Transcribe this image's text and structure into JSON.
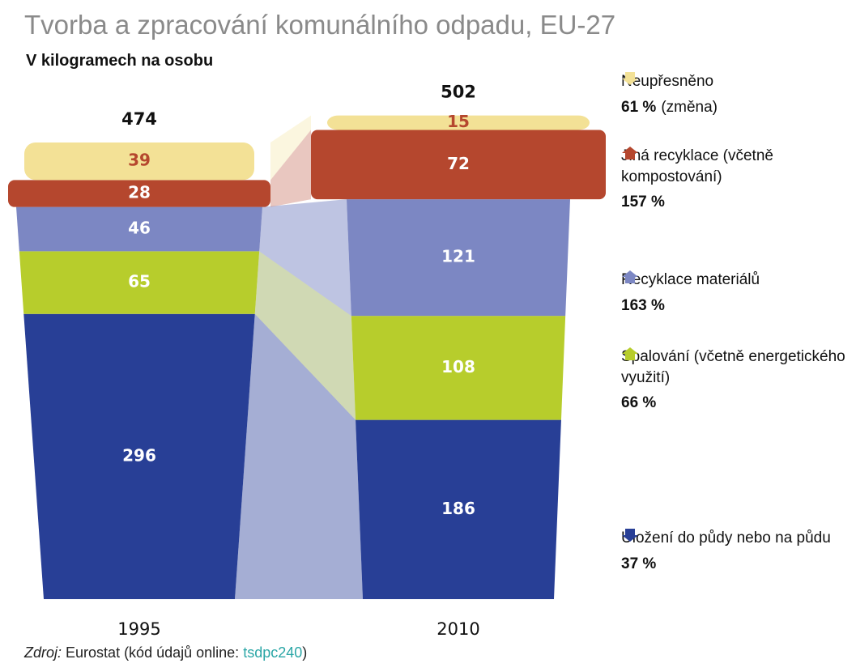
{
  "chart_data": {
    "type": "stacked-bins",
    "title": "Tvorba a zpracování komunálního odpadu, EU-27",
    "subtitle": "V kilogramech na osobu",
    "categories": [
      "1995",
      "2010"
    ],
    "totals": [
      474,
      502
    ],
    "series": [
      {
        "name": "Uložení do půdy nebo na půdu",
        "color": "#283f96",
        "values": [
          296,
          186
        ],
        "change": {
          "value": 37,
          "label": "37 %"
        },
        "direction": "down"
      },
      {
        "name": "Spalování (včetně energetického využití)",
        "color": "#b7cd2c",
        "values": [
          65,
          108
        ],
        "change": {
          "value": 66,
          "label": "66 %"
        },
        "direction": "up"
      },
      {
        "name": "Recyklace materiálů",
        "color": "#7c87c3",
        "values": [
          46,
          121
        ],
        "change": {
          "value": 163,
          "label": "163 %"
        },
        "direction": "up"
      },
      {
        "name": "Jiná recyklace (včetně kompostování)",
        "color": "#b5472e",
        "values": [
          28,
          72
        ],
        "change": {
          "value": 157,
          "label": "157 %"
        },
        "direction": "up"
      },
      {
        "name": "Neupřesněno",
        "color": "#f3e196",
        "values": [
          39,
          15
        ],
        "change": {
          "value": 61,
          "label": "61 %"
        },
        "direction": "down"
      }
    ],
    "change_note": "(změna)",
    "source_prefix": "Zdroj:",
    "source_text": "Eurostat (kód údajů online:",
    "source_link": "tsdpc240",
    "source_suffix": ")"
  }
}
